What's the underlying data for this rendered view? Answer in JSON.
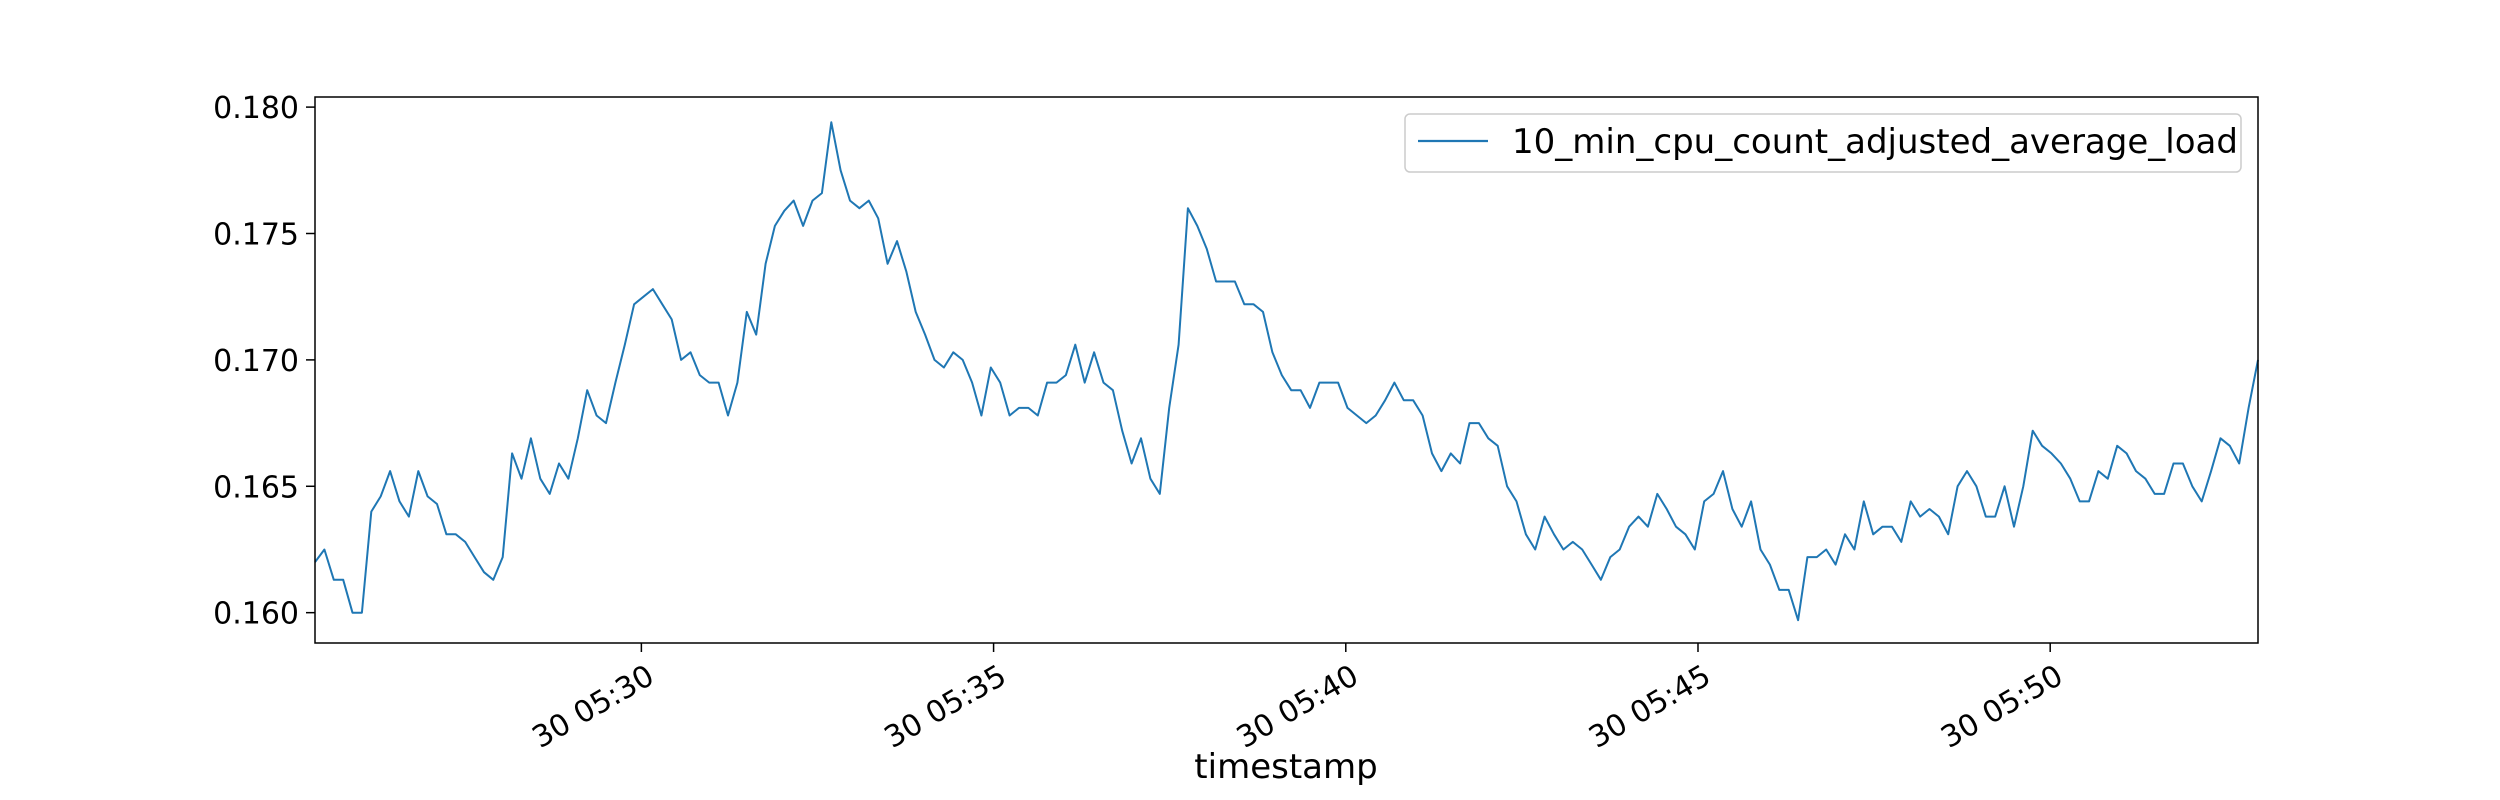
{
  "chart_data": {
    "type": "line",
    "title": "",
    "xlabel": "timestamp",
    "ylabel": "",
    "x_start": "2000-01-30 05:25:22",
    "x_end": "2000-01-30 05:52:57",
    "x_ticks": [
      "30 05:30",
      "30 05:35",
      "30 05:40",
      "30 05:45",
      "30 05:50"
    ],
    "y_ticks": [
      "0.160",
      "0.165",
      "0.170",
      "0.175",
      "0.180"
    ],
    "ylim": [
      0.1588,
      0.1804
    ],
    "grid": false,
    "legend": {
      "position": "top-right"
    },
    "series": [
      {
        "name": "10_min_cpu_count_adjusted_average_load",
        "color": "#1f77b4",
        "values": [
          0.162,
          0.1625,
          0.1613,
          0.1613,
          0.16,
          0.16,
          0.164,
          0.1646,
          0.1656,
          0.1644,
          0.1638,
          0.1656,
          0.1646,
          0.1643,
          0.1631,
          0.1631,
          0.1628,
          0.1622,
          0.1616,
          0.1613,
          0.1622,
          0.1663,
          0.1653,
          0.1669,
          0.1653,
          0.1647,
          0.1659,
          0.1653,
          0.1669,
          0.1688,
          0.1678,
          0.1675,
          0.1691,
          0.1706,
          0.1722,
          0.1725,
          0.1728,
          0.1722,
          0.1716,
          0.17,
          0.1703,
          0.1694,
          0.1691,
          0.1691,
          0.1678,
          0.1691,
          0.1719,
          0.171,
          0.1738,
          0.1753,
          0.1759,
          0.1763,
          0.1753,
          0.1763,
          0.1766,
          0.1794,
          0.1775,
          0.1763,
          0.176,
          0.1763,
          0.1756,
          0.1738,
          0.1747,
          0.1735,
          0.1719,
          0.171,
          0.17,
          0.1697,
          0.1703,
          0.17,
          0.1691,
          0.1678,
          0.1697,
          0.1691,
          0.1678,
          0.1681,
          0.1681,
          0.1678,
          0.1691,
          0.1691,
          0.1694,
          0.1706,
          0.1691,
          0.1703,
          0.1691,
          0.1688,
          0.1672,
          0.1659,
          0.1669,
          0.1653,
          0.1647,
          0.1681,
          0.1706,
          0.176,
          0.1753,
          0.1744,
          0.1731,
          0.1731,
          0.1731,
          0.1722,
          0.1722,
          0.1719,
          0.1703,
          0.1694,
          0.1688,
          0.1688,
          0.1681,
          0.1691,
          0.1691,
          0.1691,
          0.1681,
          0.1678,
          0.1675,
          0.1678,
          0.1684,
          0.1691,
          0.1684,
          0.1684,
          0.1678,
          0.1663,
          0.1656,
          0.1663,
          0.1659,
          0.1675,
          0.1675,
          0.1669,
          0.1666,
          0.165,
          0.1644,
          0.1631,
          0.1625,
          0.1638,
          0.1631,
          0.1625,
          0.1628,
          0.1625,
          0.1619,
          0.1613,
          0.1622,
          0.1625,
          0.1634,
          0.1638,
          0.1634,
          0.1647,
          0.1641,
          0.1634,
          0.1631,
          0.1625,
          0.1644,
          0.1647,
          0.1656,
          0.1641,
          0.1634,
          0.1644,
          0.1625,
          0.1619,
          0.1609,
          0.1609,
          0.1597,
          0.1622,
          0.1622,
          0.1625,
          0.1619,
          0.1631,
          0.1625,
          0.1644,
          0.1631,
          0.1634,
          0.1634,
          0.1628,
          0.1644,
          0.1638,
          0.1641,
          0.1638,
          0.1631,
          0.165,
          0.1656,
          0.165,
          0.1638,
          0.1638,
          0.165,
          0.1634,
          0.165,
          0.1672,
          0.1666,
          0.1663,
          0.1659,
          0.1653,
          0.1644,
          0.1644,
          0.1656,
          0.1653,
          0.1666,
          0.1663,
          0.1656,
          0.1653,
          0.1647,
          0.1647,
          0.1659,
          0.1659,
          0.165,
          0.1644,
          0.1656,
          0.1669,
          0.1666,
          0.1659,
          0.1681,
          0.17
        ]
      }
    ]
  }
}
